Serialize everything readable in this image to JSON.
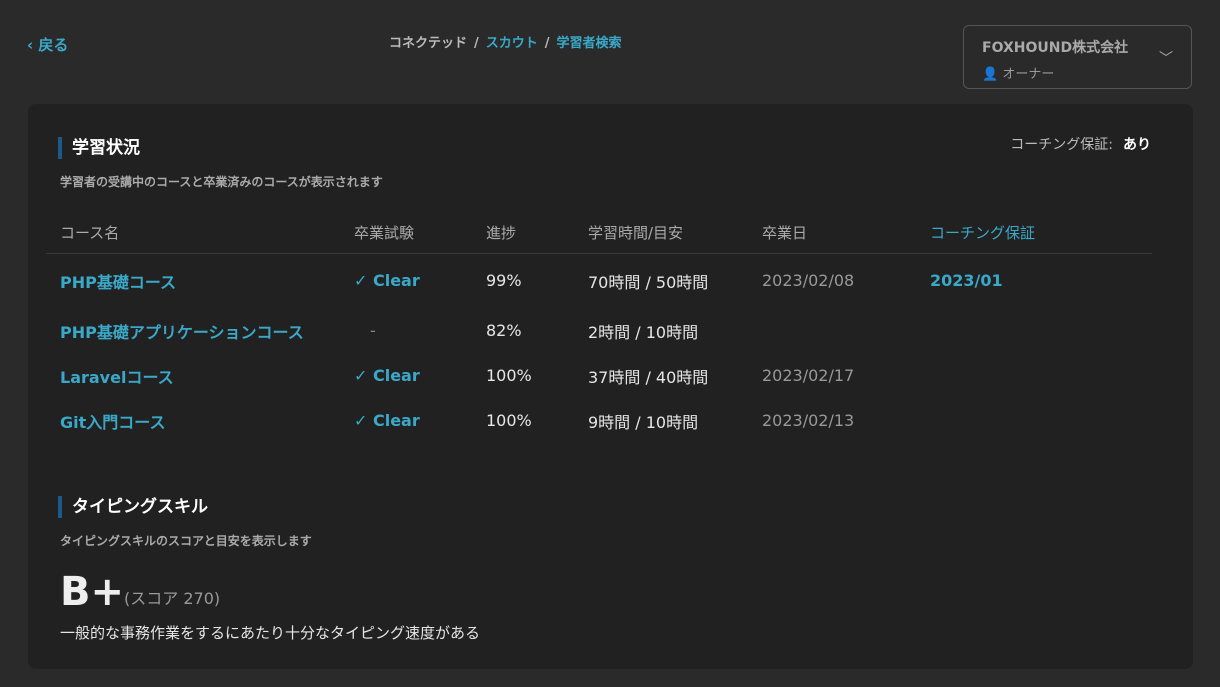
{
  "nav": {
    "back": "戻る",
    "breadcrumb": [
      "コネクテッド",
      "スカウト",
      "学習者検索"
    ]
  },
  "account": {
    "company": "FOXHOUND株式会社",
    "role": "オーナー"
  },
  "learning": {
    "title": "学習状況",
    "subtitle": "学習者の受講中のコースと卒業済みのコースが表示されます",
    "coaching_label": "コーチング保証:",
    "coaching_value": "あり",
    "columns": [
      "コース名",
      "卒業試験",
      "進捗",
      "学習時間/目安",
      "卒業日",
      "コーチング保証"
    ],
    "rows": [
      {
        "course": "PHP基礎コース",
        "exam": "✓ Clear",
        "progress": "99%",
        "time": "70時間 / 50時間",
        "grad": "2023/02/08",
        "coaching": "2023/01"
      },
      {
        "course": "PHP基礎アプリケーションコース",
        "exam": "-",
        "progress": "82%",
        "time": "2時間 / 10時間",
        "grad": "",
        "coaching": ""
      },
      {
        "course": "Laravelコース",
        "exam": "✓ Clear",
        "progress": "100%",
        "time": "37時間 / 40時間",
        "grad": "2023/02/17",
        "coaching": ""
      },
      {
        "course": "Git入門コース",
        "exam": "✓ Clear",
        "progress": "100%",
        "time": "9時間 / 10時間",
        "grad": "2023/02/13",
        "coaching": ""
      }
    ]
  },
  "typing": {
    "title": "タイピングスキル",
    "subtitle": "タイピングスキルのスコアと目安を表示します",
    "grade": "B+",
    "score": "(スコア 270)",
    "description": "一般的な事務作業をするにあたり十分なタイピング速度がある"
  },
  "colors": {
    "accent": "#3aa9c9",
    "bar": "#1d5a8c"
  }
}
